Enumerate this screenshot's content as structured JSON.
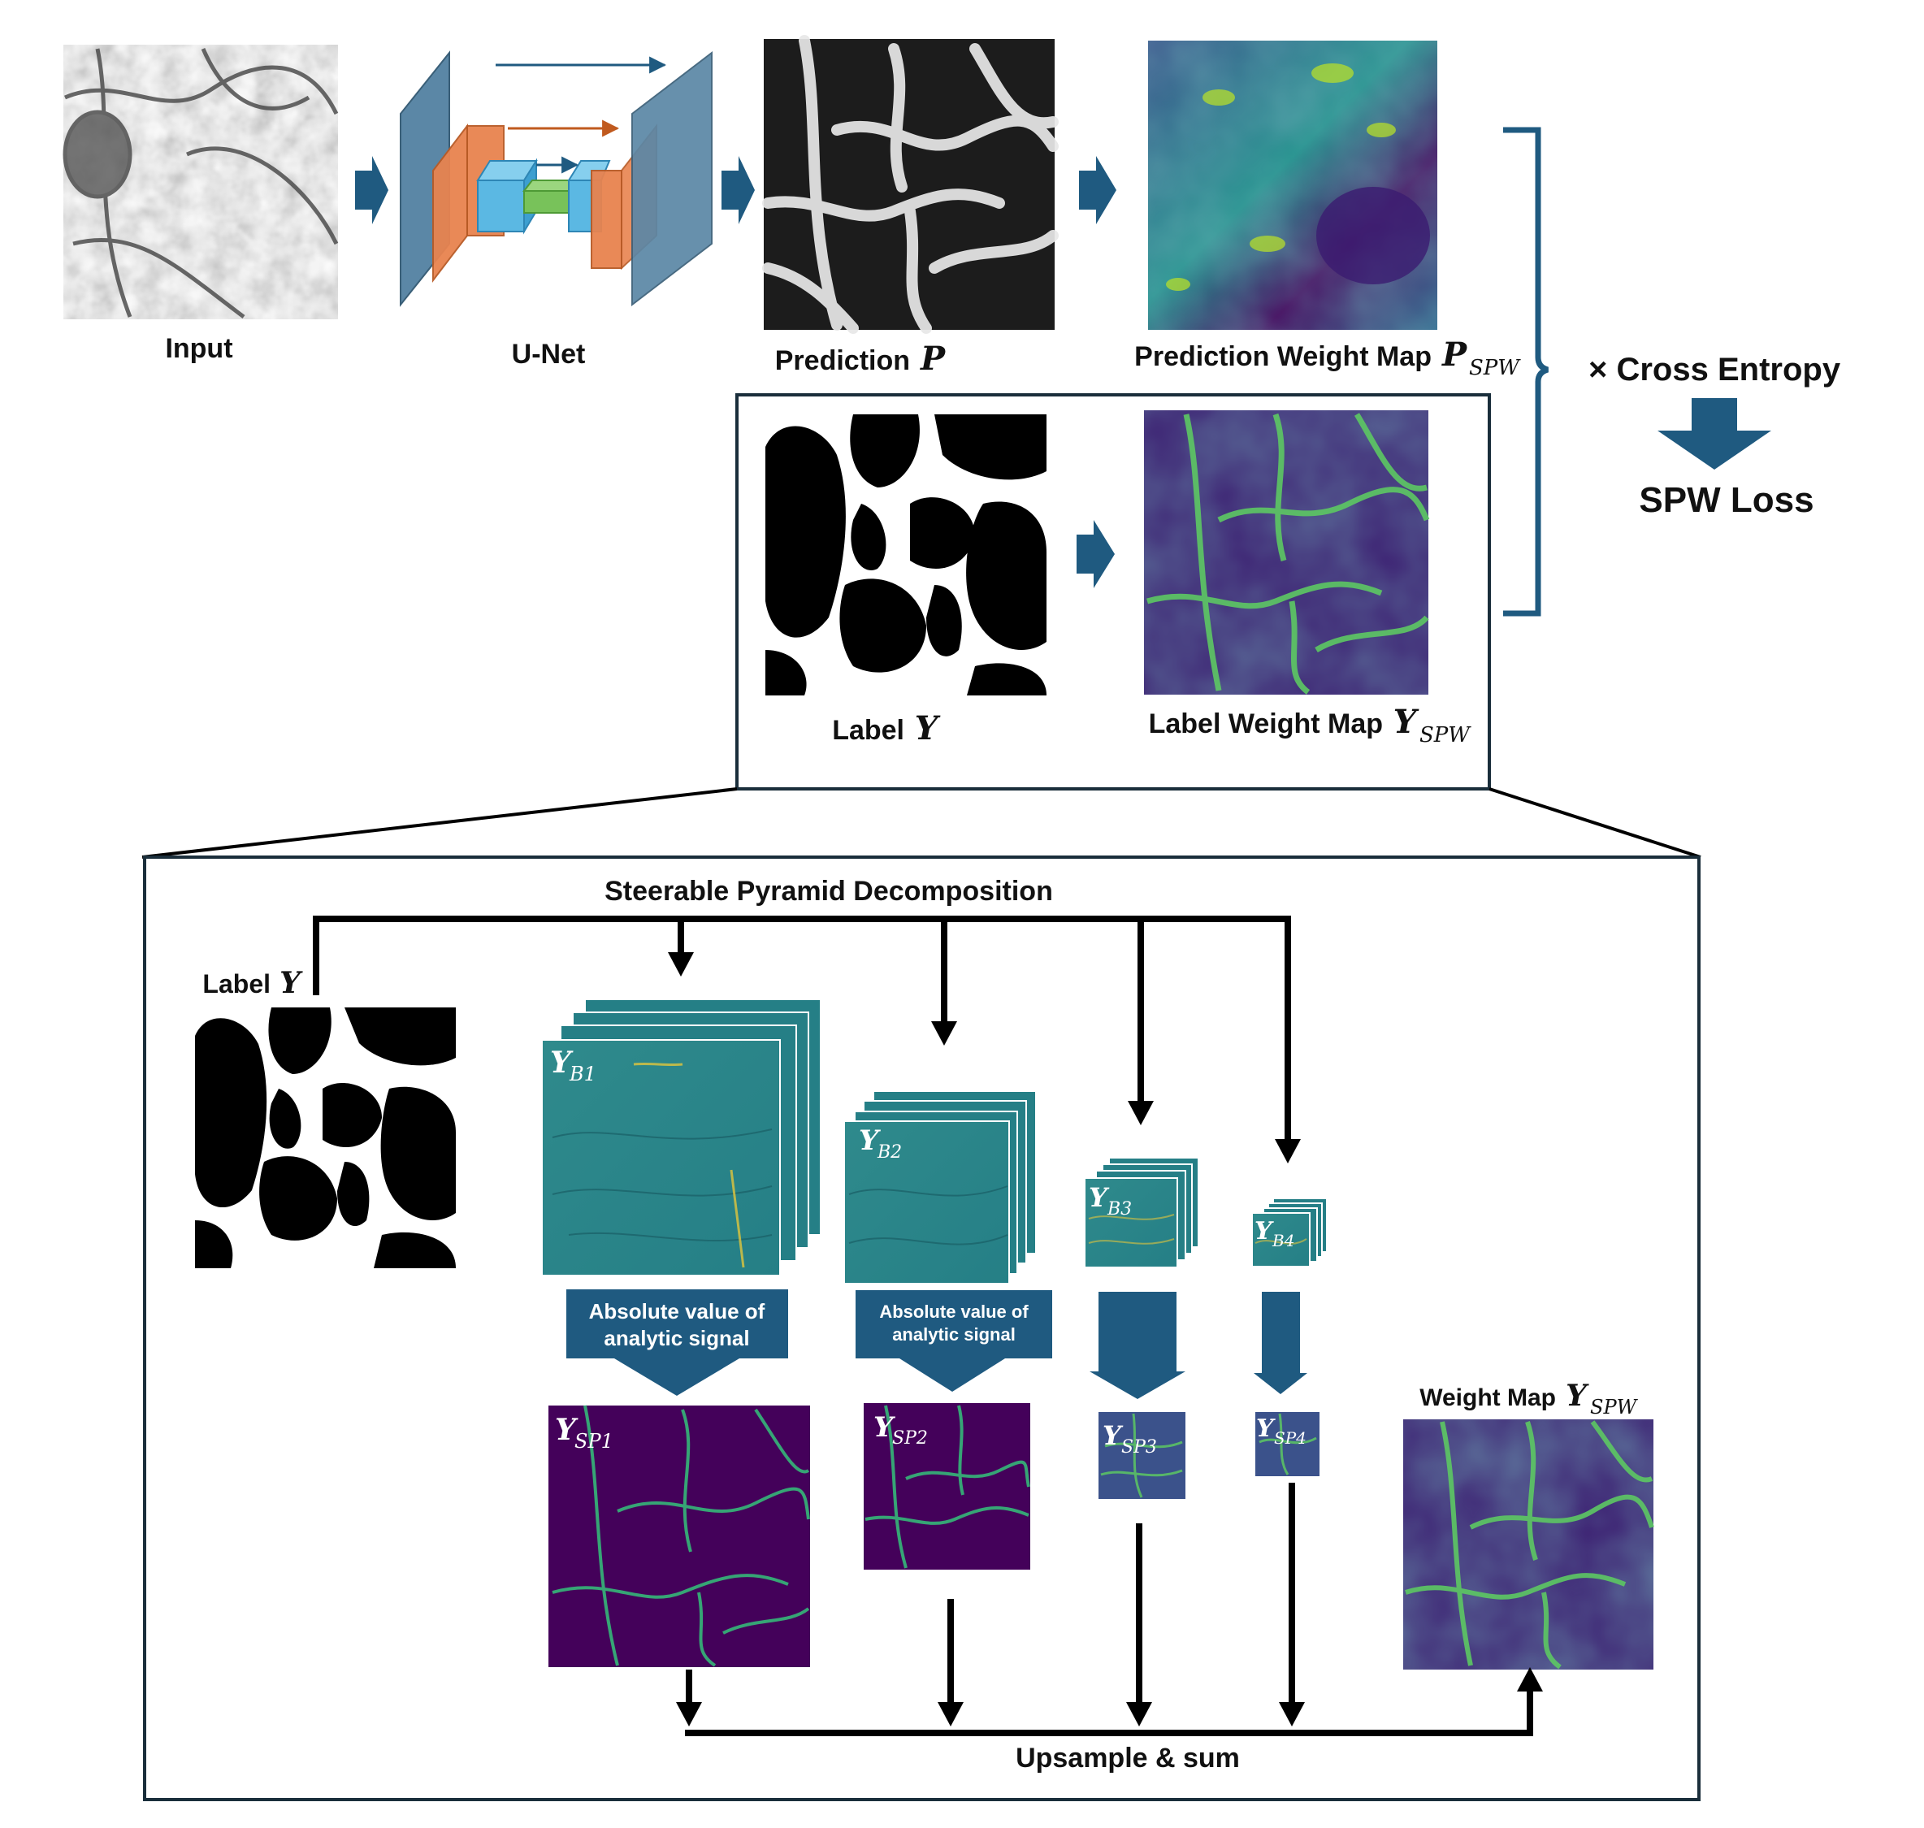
{
  "top": {
    "input_label": "Input",
    "unet_label": "U-Net",
    "prediction_label": "Prediction",
    "prediction_symbol": "P",
    "pred_weight_label": "Prediction Weight Map",
    "pred_weight_symbol": "P",
    "pred_weight_sub": "SPW",
    "label_label": "Label",
    "label_symbol": "Y",
    "label_weight_label": "Label Weight Map",
    "label_weight_symbol": "Y",
    "label_weight_sub": "SPW",
    "cross_entropy": "× Cross Entropy",
    "loss": "SPW Loss"
  },
  "detail": {
    "title": "Steerable Pyramid Decomposition",
    "label_label": "Label",
    "label_symbol": "Y",
    "bands": [
      {
        "symbol": "Y",
        "sub": "B1"
      },
      {
        "symbol": "Y",
        "sub": "B2"
      },
      {
        "symbol": "Y",
        "sub": "B3"
      },
      {
        "symbol": "Y",
        "sub": "B4"
      }
    ],
    "sp": [
      {
        "symbol": "Y",
        "sub": "SP1"
      },
      {
        "symbol": "Y",
        "sub": "SP2"
      },
      {
        "symbol": "Y",
        "sub": "SP3"
      },
      {
        "symbol": "Y",
        "sub": "SP4"
      }
    ],
    "abs_box_1": [
      "Absolute value of",
      "analytic signal"
    ],
    "abs_box_2": [
      "Absolute value of",
      "analytic signal"
    ],
    "weight_label": "Weight Map",
    "weight_symbol": "Y",
    "weight_sub": "SPW",
    "upsample": "Upsample & sum"
  },
  "colors": {
    "arrow_blue": "#1f5a80",
    "unet_blue": "#5b87a6",
    "unet_orange": "#e8834f",
    "unet_cyan": "#5bb8e3",
    "unet_green": "#78c25a",
    "viridis_dark": "#44015a",
    "viridis_mid": "#26828e",
    "viridis_bright": "#b5de2b",
    "band_teal": "#2a8c8c",
    "border": "#1a2e3b"
  }
}
